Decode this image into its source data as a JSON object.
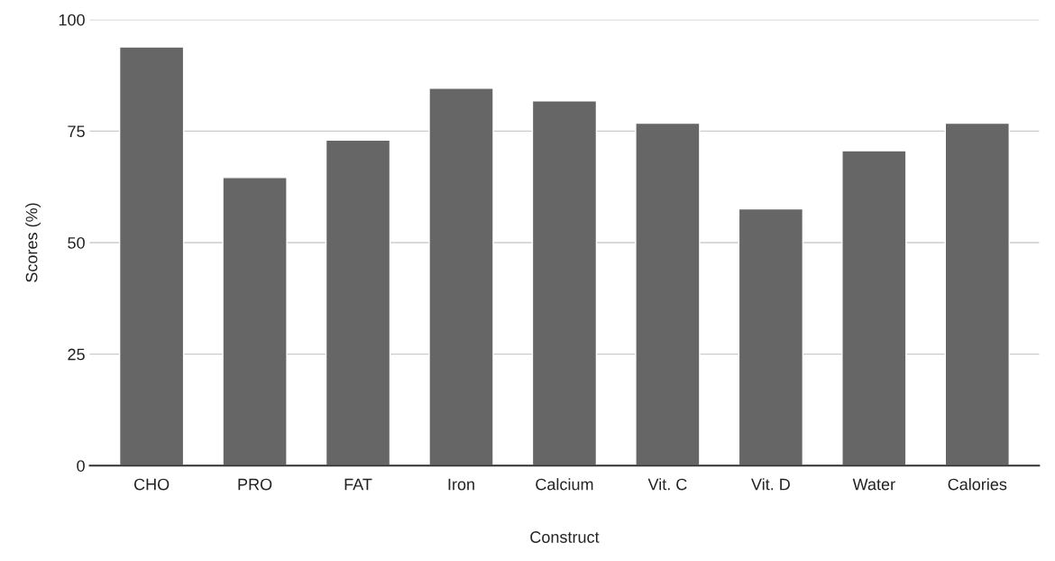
{
  "chart_data": {
    "type": "bar",
    "xlabel": "Construct",
    "ylabel": "Scores (%)",
    "categories": [
      "CHO",
      "PRO",
      "FAT",
      "Iron",
      "Calcium",
      "Vit. C",
      "Vit. D",
      "Water",
      "Calories"
    ],
    "values": [
      93.9,
      64.6,
      73,
      84.6,
      81.8,
      76.8,
      57.6,
      70.6,
      76.8
    ],
    "color": "#666666",
    "ylim": [
      0,
      100
    ],
    "yticks": [
      0,
      25,
      50,
      75,
      100
    ],
    "grid": "y",
    "legend": false
  }
}
